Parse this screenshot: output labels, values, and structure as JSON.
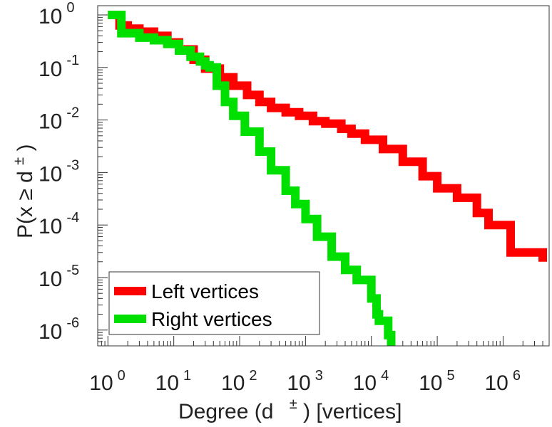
{
  "chart_data": {
    "type": "line",
    "title": "",
    "xscale": "log",
    "yscale": "log",
    "xlim": [
      0.7,
      5000000
    ],
    "ylim": [
      5e-07,
      1.5
    ],
    "xlabel": {
      "main": "Degree (d",
      "sup": "±",
      "tail": ") [vertices]"
    },
    "ylabel": {
      "main": "P(x ≥ d",
      "sup": "±",
      "tail": ")"
    },
    "x_ticks": [
      {
        "value": 1,
        "base": "10",
        "exp": "0"
      },
      {
        "value": 10,
        "base": "10",
        "exp": "1"
      },
      {
        "value": 100,
        "base": "10",
        "exp": "2"
      },
      {
        "value": 1000,
        "base": "10",
        "exp": "3"
      },
      {
        "value": 10000,
        "base": "10",
        "exp": "4"
      },
      {
        "value": 100000,
        "base": "10",
        "exp": "5"
      },
      {
        "value": 1000000,
        "base": "10",
        "exp": "6"
      }
    ],
    "y_ticks": [
      {
        "value": 1,
        "base": "10",
        "exp": "0"
      },
      {
        "value": 0.1,
        "base": "10",
        "exp": "-1"
      },
      {
        "value": 0.01,
        "base": "10",
        "exp": "-2"
      },
      {
        "value": 0.001,
        "base": "10",
        "exp": "-3"
      },
      {
        "value": 0.0001,
        "base": "10",
        "exp": "-4"
      },
      {
        "value": 1e-05,
        "base": "10",
        "exp": "-5"
      },
      {
        "value": 1e-06,
        "base": "10",
        "exp": "-6"
      }
    ],
    "legend": {
      "position": "bottom-left"
    },
    "series": [
      {
        "name": "Left vertices",
        "color": "#ff0000",
        "x": [
          1,
          1.5,
          2,
          3,
          5,
          8,
          12,
          20,
          30,
          50,
          80,
          130,
          200,
          300,
          500,
          800,
          1300,
          2000,
          3500,
          5000,
          8000,
          15000,
          30000,
          60000,
          100000,
          200000,
          400000,
          600000,
          1200000,
          1300000,
          4000000
        ],
        "y": [
          1,
          0.63,
          0.55,
          0.48,
          0.4,
          0.3,
          0.22,
          0.14,
          0.095,
          0.065,
          0.045,
          0.03,
          0.022,
          0.017,
          0.014,
          0.012,
          0.0095,
          0.0085,
          0.0068,
          0.0055,
          0.0042,
          0.0028,
          0.0016,
          0.00085,
          0.0005,
          0.00033,
          0.00017,
          0.0001,
          0.0001,
          3e-05,
          2e-05
        ]
      },
      {
        "name": "Right vertices",
        "color": "#00e000",
        "x": [
          1,
          1.45,
          1.6,
          3,
          5,
          8,
          12,
          18,
          25,
          30,
          35,
          45,
          60,
          80,
          120,
          200,
          300,
          500,
          700,
          1000,
          1500,
          2500,
          4000,
          6000,
          10000,
          12000,
          13000,
          18000,
          20000
        ],
        "y": [
          1,
          1,
          0.45,
          0.37,
          0.33,
          0.28,
          0.21,
          0.16,
          0.13,
          0.11,
          0.1,
          0.045,
          0.022,
          0.012,
          0.006,
          0.0025,
          0.0011,
          0.00045,
          0.00025,
          0.00013,
          6e-05,
          2.5e-05,
          1.4e-05,
          9e-06,
          4e-06,
          2e-06,
          1.5e-06,
          8e-07,
          5e-07
        ]
      }
    ],
    "grid": false
  }
}
